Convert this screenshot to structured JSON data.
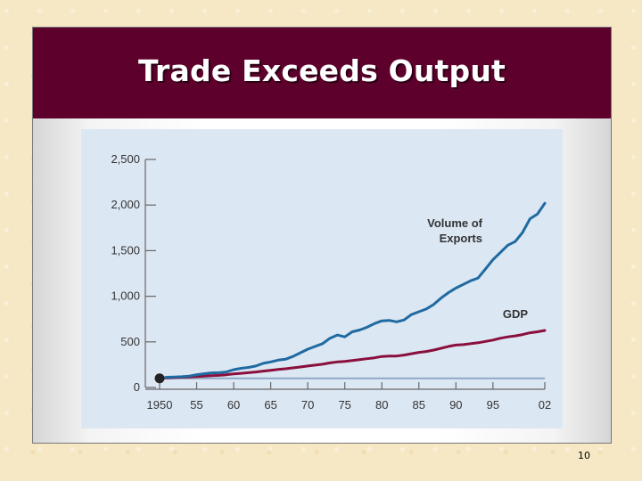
{
  "slide": {
    "title": "Trade Exceeds Output",
    "page_number": "10"
  },
  "chart_data": {
    "type": "line",
    "title": "",
    "xlabel": "",
    "ylabel": "",
    "xlim": [
      1950,
      2002
    ],
    "ylim": [
      0,
      2500
    ],
    "y_ticks": [
      0,
      500,
      1000,
      1500,
      2000,
      2500
    ],
    "y_tick_labels": [
      "0",
      "500",
      "1,000",
      "1,500",
      "2,000",
      "2,500"
    ],
    "x_ticks": [
      1950,
      1955,
      1960,
      1965,
      1970,
      1975,
      1980,
      1985,
      1990,
      1995,
      2002
    ],
    "x_tick_labels": [
      "1950",
      "55",
      "60",
      "65",
      "70",
      "75",
      "80",
      "85",
      "90",
      "95",
      "02"
    ],
    "baseline": 100,
    "colors": {
      "exports": "#1f6aa0",
      "gdp": "#8a0f3c",
      "baseline": "#8fa9c4",
      "axis": "#666666",
      "text": "#333333",
      "marker": "#222222"
    },
    "series": [
      {
        "name": "Volume of\nExports",
        "x": [
          1950,
          1951,
          1952,
          1953,
          1954,
          1955,
          1956,
          1957,
          1958,
          1959,
          1960,
          1961,
          1962,
          1963,
          1964,
          1965,
          1966,
          1967,
          1968,
          1969,
          1970,
          1971,
          1972,
          1973,
          1974,
          1975,
          1976,
          1977,
          1978,
          1979,
          1980,
          1981,
          1982,
          1983,
          1984,
          1985,
          1986,
          1987,
          1988,
          1989,
          1990,
          1991,
          1992,
          1993,
          1994,
          1995,
          1996,
          1997,
          1998,
          1999,
          2000,
          2001,
          2002
        ],
        "values": [
          100,
          112,
          115,
          118,
          125,
          140,
          150,
          160,
          162,
          170,
          195,
          210,
          220,
          235,
          265,
          280,
          300,
          310,
          340,
          380,
          420,
          450,
          480,
          540,
          575,
          555,
          610,
          630,
          660,
          700,
          730,
          735,
          720,
          740,
          800,
          830,
          860,
          910,
          980,
          1040,
          1090,
          1130,
          1170,
          1200,
          1300,
          1400,
          1480,
          1560,
          1600,
          1700,
          1850,
          1900,
          2020
        ]
      },
      {
        "name": "GDP",
        "x": [
          1950,
          1951,
          1952,
          1953,
          1954,
          1955,
          1956,
          1957,
          1958,
          1959,
          1960,
          1961,
          1962,
          1963,
          1964,
          1965,
          1966,
          1967,
          1968,
          1969,
          1970,
          1971,
          1972,
          1973,
          1974,
          1975,
          1976,
          1977,
          1978,
          1979,
          1980,
          1981,
          1982,
          1983,
          1984,
          1985,
          1986,
          1987,
          1988,
          1989,
          1990,
          1991,
          1992,
          1993,
          1994,
          1995,
          1996,
          1997,
          1998,
          1999,
          2000,
          2001,
          2002
        ],
        "values": [
          100,
          105,
          108,
          112,
          115,
          120,
          125,
          130,
          133,
          140,
          148,
          155,
          162,
          170,
          180,
          188,
          198,
          205,
          215,
          225,
          235,
          245,
          255,
          270,
          280,
          285,
          295,
          305,
          315,
          325,
          340,
          345,
          345,
          355,
          370,
          385,
          395,
          410,
          430,
          450,
          465,
          470,
          480,
          490,
          505,
          520,
          540,
          555,
          565,
          580,
          600,
          610,
          625
        ]
      }
    ]
  }
}
